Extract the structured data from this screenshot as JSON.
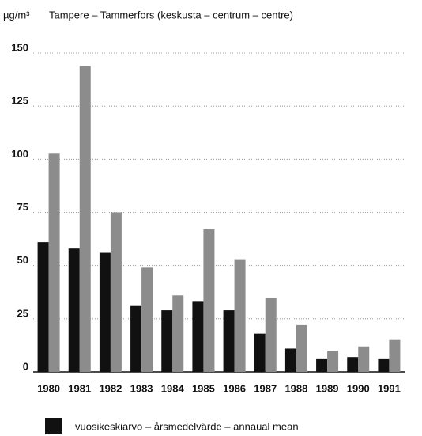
{
  "chart_data": {
    "type": "bar",
    "ylabel": "µg/m³",
    "title": "Tampere – Tammerfors (keskusta – centrum – centre)",
    "categories": [
      "1980",
      "1981",
      "1982",
      "1983",
      "1984",
      "1985",
      "1986",
      "1987",
      "1988",
      "1989",
      "1990",
      "1991"
    ],
    "series": [
      {
        "name": "vuosikeskiarvo – årsmedelvärde – annaual mean",
        "color": "#111111",
        "values": [
          61,
          58,
          56,
          31,
          29,
          33,
          29,
          18,
          11,
          6,
          7,
          6
        ]
      },
      {
        "color": "#8c8c8c",
        "values": [
          103,
          144,
          75,
          49,
          36,
          67,
          53,
          35,
          22,
          10,
          12,
          15
        ]
      }
    ],
    "ylim": [
      0,
      150
    ],
    "yticks": [
      0,
      25,
      50,
      75,
      100,
      125,
      150
    ],
    "grid": true
  }
}
